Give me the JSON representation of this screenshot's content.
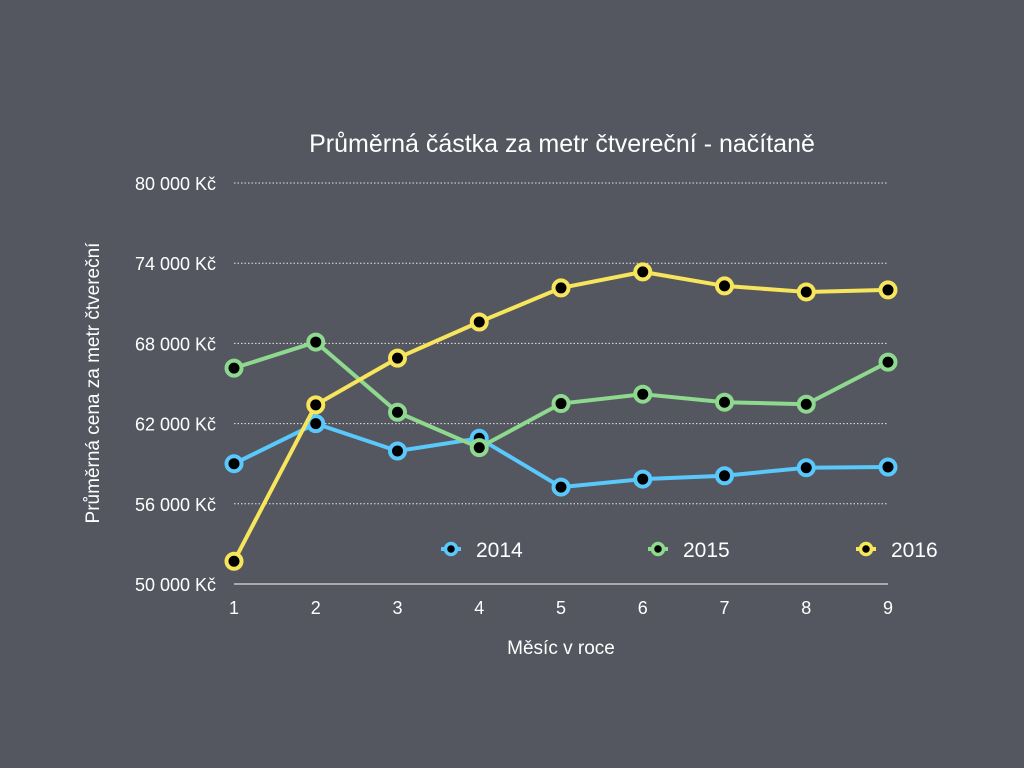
{
  "chart_data": {
    "type": "line",
    "title": "Průměrná částka za metr čtvereční - načítaně",
    "xlabel": "Měsíc v roce",
    "ylabel": "Průměrná cena za metr čtvereční",
    "x": [
      1,
      2,
      3,
      4,
      5,
      6,
      7,
      8,
      9
    ],
    "x_tick_labels": [
      "1",
      "2",
      "3",
      "4",
      "5",
      "6",
      "7",
      "8",
      "9"
    ],
    "ylim": [
      50000,
      80000
    ],
    "y_ticks": [
      50000,
      56000,
      62000,
      68000,
      74000,
      80000
    ],
    "y_tick_labels": [
      "50 000 Kč",
      "56 000 Kč",
      "62 000 Kč",
      "68 000 Kč",
      "74 000 Kč",
      "80 000 Kč"
    ],
    "grid": "horizontal dotted",
    "legend_position": "bottom-inside",
    "series": [
      {
        "name": "2014",
        "color": "#5ac8fa",
        "values": [
          59000,
          62000,
          59950,
          60900,
          57250,
          57850,
          58100,
          58700,
          58750
        ]
      },
      {
        "name": "2015",
        "color": "#8fd88f",
        "values": [
          66150,
          68100,
          62850,
          60200,
          63500,
          64200,
          63600,
          63450,
          66600
        ]
      },
      {
        "name": "2016",
        "color": "#f7e55c",
        "values": [
          51700,
          63400,
          66900,
          69600,
          72150,
          73350,
          72300,
          71850,
          72000
        ]
      }
    ]
  }
}
